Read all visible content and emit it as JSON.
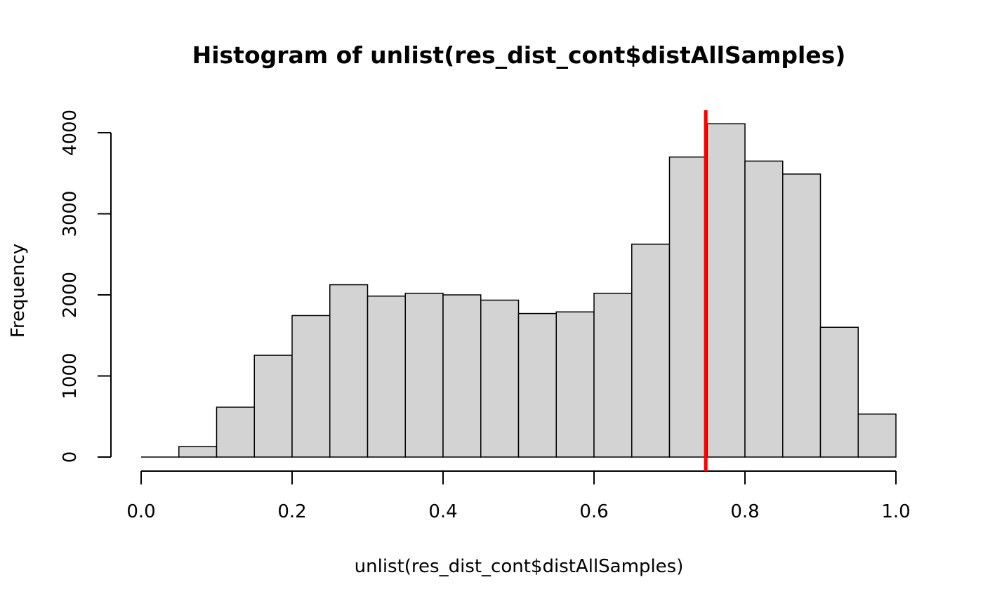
{
  "chart_data": {
    "type": "bar",
    "title": "Histogram of unlist(res_dist_cont$distAllSamples)",
    "xlabel": "unlist(res_dist_cont$distAllSamples)",
    "ylabel": "Frequency",
    "xlim": [
      0.0,
      1.0
    ],
    "ylim": [
      0,
      4300
    ],
    "grid": false,
    "bins": [
      {
        "x0": 0.0,
        "x1": 0.05,
        "value": 0
      },
      {
        "x0": 0.05,
        "x1": 0.1,
        "value": 130
      },
      {
        "x0": 0.1,
        "x1": 0.15,
        "value": 615
      },
      {
        "x0": 0.15,
        "x1": 0.2,
        "value": 1255
      },
      {
        "x0": 0.2,
        "x1": 0.25,
        "value": 1745
      },
      {
        "x0": 0.25,
        "x1": 0.3,
        "value": 2125
      },
      {
        "x0": 0.3,
        "x1": 0.35,
        "value": 1985
      },
      {
        "x0": 0.35,
        "x1": 0.4,
        "value": 2020
      },
      {
        "x0": 0.4,
        "x1": 0.45,
        "value": 2000
      },
      {
        "x0": 0.45,
        "x1": 0.5,
        "value": 1935
      },
      {
        "x0": 0.5,
        "x1": 0.55,
        "value": 1770
      },
      {
        "x0": 0.55,
        "x1": 0.6,
        "value": 1790
      },
      {
        "x0": 0.6,
        "x1": 0.65,
        "value": 2020
      },
      {
        "x0": 0.65,
        "x1": 0.7,
        "value": 2625
      },
      {
        "x0": 0.7,
        "x1": 0.75,
        "value": 3700
      },
      {
        "x0": 0.75,
        "x1": 0.8,
        "value": 4110
      },
      {
        "x0": 0.8,
        "x1": 0.85,
        "value": 3650
      },
      {
        "x0": 0.85,
        "x1": 0.9,
        "value": 3490
      },
      {
        "x0": 0.9,
        "x1": 0.95,
        "value": 1600
      },
      {
        "x0": 0.95,
        "x1": 1.0,
        "value": 530
      }
    ],
    "x_ticks": [
      {
        "value": 0.0,
        "label": "0.0"
      },
      {
        "value": 0.2,
        "label": "0.2"
      },
      {
        "value": 0.4,
        "label": "0.4"
      },
      {
        "value": 0.6,
        "label": "0.6"
      },
      {
        "value": 0.8,
        "label": "0.8"
      },
      {
        "value": 1.0,
        "label": "1.0"
      }
    ],
    "y_ticks": [
      {
        "value": 0,
        "label": "0"
      },
      {
        "value": 1000,
        "label": "1000"
      },
      {
        "value": 2000,
        "label": "2000"
      },
      {
        "value": 3000,
        "label": "3000"
      },
      {
        "value": 4000,
        "label": "4000"
      }
    ],
    "reference_line": {
      "x": 0.748,
      "color": "#ff0000"
    },
    "colors": {
      "bar_fill": "#d3d3d3",
      "bar_stroke": "#000000",
      "axis": "#000000"
    }
  }
}
